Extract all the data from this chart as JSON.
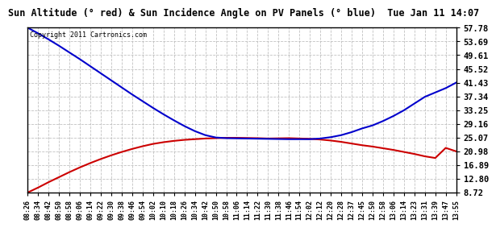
{
  "title": "Sun Altitude (° red) & Sun Incidence Angle on PV Panels (° blue)  Tue Jan 11 14:07",
  "copyright_text": "Copyright 2011 Cartronics.com",
  "background_color": "#ffffff",
  "plot_bg_color": "#ffffff",
  "grid_color": "#bbbbbb",
  "line_red_color": "#cc0000",
  "line_blue_color": "#0000cc",
  "yticks": [
    8.72,
    12.8,
    16.89,
    20.98,
    25.07,
    29.16,
    33.25,
    37.34,
    41.43,
    45.52,
    49.61,
    53.69,
    57.78
  ],
  "ymin": 8.72,
  "ymax": 57.78,
  "times": [
    "08:26",
    "08:34",
    "08:42",
    "08:50",
    "08:58",
    "09:06",
    "09:14",
    "09:22",
    "09:30",
    "09:38",
    "09:46",
    "09:54",
    "10:02",
    "10:10",
    "10:18",
    "10:26",
    "10:34",
    "10:42",
    "10:50",
    "10:58",
    "11:06",
    "11:14",
    "11:22",
    "11:30",
    "11:38",
    "11:46",
    "11:54",
    "12:02",
    "12:12",
    "12:20",
    "12:28",
    "12:37",
    "12:45",
    "12:50",
    "12:58",
    "13:06",
    "13:14",
    "13:23",
    "13:31",
    "13:39",
    "13:47",
    "13:55"
  ],
  "red_values": [
    8.72,
    10.2,
    11.8,
    13.3,
    14.8,
    16.2,
    17.5,
    18.7,
    19.8,
    20.8,
    21.7,
    22.5,
    23.2,
    23.7,
    24.1,
    24.4,
    24.6,
    24.8,
    24.9,
    25.0,
    25.0,
    24.95,
    24.9,
    24.8,
    24.85,
    24.9,
    24.8,
    24.7,
    24.5,
    24.2,
    23.8,
    23.3,
    22.8,
    22.4,
    21.9,
    21.4,
    20.8,
    20.2,
    19.5,
    19.0,
    22.0,
    20.98
  ],
  "blue_values": [
    57.78,
    56.1,
    54.3,
    52.4,
    50.4,
    48.4,
    46.3,
    44.2,
    42.1,
    40.0,
    37.9,
    35.9,
    33.9,
    32.0,
    30.2,
    28.5,
    27.0,
    25.8,
    25.1,
    24.9,
    24.85,
    24.8,
    24.75,
    24.7,
    24.65,
    24.6,
    24.6,
    24.6,
    24.8,
    25.2,
    25.8,
    26.7,
    27.8,
    28.7,
    30.0,
    31.5,
    33.2,
    35.2,
    37.2,
    38.5,
    39.8,
    41.43
  ]
}
